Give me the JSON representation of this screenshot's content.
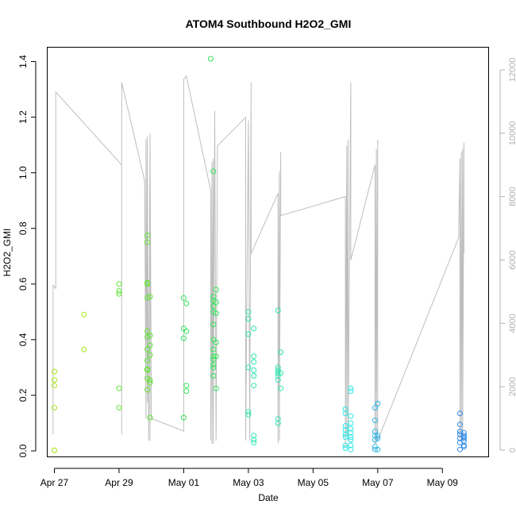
{
  "chart_data": {
    "type": "scatter",
    "title": "ATOM4 Southbound H2O2_GMI",
    "xlabel": "Date",
    "ylabel": "H2O2_GMI",
    "xlim": [
      "2018-04-26T19:00",
      "2018-05-10T10:00"
    ],
    "ylim": [
      -0.02,
      1.45
    ],
    "x_ticks": [
      {
        "label": "Apr 27",
        "x": "2018-04-27"
      },
      {
        "label": "Apr 29",
        "x": "2018-04-29"
      },
      {
        "label": "May 01",
        "x": "2018-05-01"
      },
      {
        "label": "May 03",
        "x": "2018-05-03"
      },
      {
        "label": "May 05",
        "x": "2018-05-05"
      },
      {
        "label": "May 07",
        "x": "2018-05-07"
      },
      {
        "label": "May 09",
        "x": "2018-05-09"
      }
    ],
    "y_ticks": [
      0.0,
      0.2,
      0.4,
      0.6,
      0.8,
      1.0,
      1.2,
      1.4
    ],
    "y_tick_labels": [
      "0.0",
      "0.2",
      "0.4",
      "0.6",
      "0.8",
      "1.0",
      "1.2",
      "1.4"
    ],
    "y2_ticks": [
      0,
      2000,
      4000,
      6000,
      8000,
      10000,
      12000
    ],
    "y2_tick_labels": [
      "0",
      "2000",
      "4000",
      "6000",
      "8000",
      "10000",
      "12000"
    ],
    "y2_lim": [
      -200,
      12700
    ],
    "grid": false,
    "marker": "open-circle",
    "color_scale": [
      "#a8e619",
      "#5ce62d",
      "#2ee657",
      "#2ee6b0",
      "#2ee6e6",
      "#2eb8e6",
      "#2e8ae6"
    ],
    "scatter_points": [
      [
        "2018-04-27T00:00",
        0.285
      ],
      [
        "2018-04-27T00:00",
        0.255
      ],
      [
        "2018-04-27T00:00",
        0.235
      ],
      [
        "2018-04-27T00:00",
        0.155
      ],
      [
        "2018-04-27T00:00",
        0.002
      ],
      [
        "2018-04-27T00:00",
        0.002
      ],
      [
        "2018-04-27T22:00",
        0.49
      ],
      [
        "2018-04-27T22:00",
        0.365
      ],
      [
        "2018-04-29T00:00",
        0.6
      ],
      [
        "2018-04-29T00:00",
        0.575
      ],
      [
        "2018-04-29T00:00",
        0.565
      ],
      [
        "2018-04-29T00:00",
        0.225
      ],
      [
        "2018-04-29T00:00",
        0.155
      ],
      [
        "2018-04-29T21:00",
        0.775
      ],
      [
        "2018-04-29T21:00",
        0.75
      ],
      [
        "2018-04-29T21:00",
        0.605
      ],
      [
        "2018-04-29T21:00",
        0.6
      ],
      [
        "2018-04-29T21:00",
        0.55
      ],
      [
        "2018-04-29T21:00",
        0.43
      ],
      [
        "2018-04-29T21:00",
        0.41
      ],
      [
        "2018-04-29T21:00",
        0.365
      ],
      [
        "2018-04-29T21:00",
        0.325
      ],
      [
        "2018-04-29T21:00",
        0.295
      ],
      [
        "2018-04-29T21:00",
        0.29
      ],
      [
        "2018-04-29T21:00",
        0.26
      ],
      [
        "2018-04-29T21:00",
        0.22
      ],
      [
        "2018-04-29T23:00",
        0.555
      ],
      [
        "2018-04-29T23:00",
        0.415
      ],
      [
        "2018-04-29T23:00",
        0.38
      ],
      [
        "2018-04-29T23:00",
        0.345
      ],
      [
        "2018-04-29T23:00",
        0.255
      ],
      [
        "2018-04-29T23:00",
        0.245
      ],
      [
        "2018-04-29T23:00",
        0.12
      ],
      [
        "2018-05-01T00:00",
        0.55
      ],
      [
        "2018-05-01T00:00",
        0.44
      ],
      [
        "2018-05-01T00:00",
        0.405
      ],
      [
        "2018-05-01T00:00",
        0.12
      ],
      [
        "2018-05-01T02:00",
        0.53
      ],
      [
        "2018-05-01T02:00",
        0.43
      ],
      [
        "2018-05-01T02:00",
        0.235
      ],
      [
        "2018-05-01T02:00",
        0.215
      ],
      [
        "2018-05-01T20:00",
        1.41
      ],
      [
        "2018-05-01T22:00",
        1.005
      ],
      [
        "2018-05-01T22:00",
        0.555
      ],
      [
        "2018-05-01T22:00",
        0.54
      ],
      [
        "2018-05-01T22:00",
        0.52
      ],
      [
        "2018-05-01T22:00",
        0.5
      ],
      [
        "2018-05-01T22:00",
        0.455
      ],
      [
        "2018-05-01T22:00",
        0.4
      ],
      [
        "2018-05-01T22:00",
        0.365
      ],
      [
        "2018-05-01T22:00",
        0.34
      ],
      [
        "2018-05-01T22:00",
        0.33
      ],
      [
        "2018-05-01T22:00",
        0.31
      ],
      [
        "2018-05-01T22:00",
        0.3
      ],
      [
        "2018-05-01T22:00",
        0.27
      ],
      [
        "2018-05-02T00:00",
        0.58
      ],
      [
        "2018-05-02T00:00",
        0.535
      ],
      [
        "2018-05-02T00:00",
        0.495
      ],
      [
        "2018-05-02T00:00",
        0.39
      ],
      [
        "2018-05-02T00:00",
        0.34
      ],
      [
        "2018-05-02T00:00",
        0.225
      ],
      [
        "2018-05-03T00:00",
        0.5
      ],
      [
        "2018-05-03T00:00",
        0.475
      ],
      [
        "2018-05-03T00:00",
        0.42
      ],
      [
        "2018-05-03T00:00",
        0.3
      ],
      [
        "2018-05-03T00:00",
        0.14
      ],
      [
        "2018-05-03T00:00",
        0.13
      ],
      [
        "2018-05-03T04:00",
        0.44
      ],
      [
        "2018-05-03T04:00",
        0.34
      ],
      [
        "2018-05-03T04:00",
        0.32
      ],
      [
        "2018-05-03T04:00",
        0.29
      ],
      [
        "2018-05-03T04:00",
        0.27
      ],
      [
        "2018-05-03T04:00",
        0.235
      ],
      [
        "2018-05-03T04:00",
        0.055
      ],
      [
        "2018-05-03T04:00",
        0.04
      ],
      [
        "2018-05-03T04:00",
        0.03
      ],
      [
        "2018-05-03T22:00",
        0.505
      ],
      [
        "2018-05-03T22:00",
        0.3
      ],
      [
        "2018-05-03T22:00",
        0.29
      ],
      [
        "2018-05-03T22:00",
        0.28
      ],
      [
        "2018-05-03T22:00",
        0.27
      ],
      [
        "2018-05-03T22:00",
        0.255
      ],
      [
        "2018-05-03T22:00",
        0.115
      ],
      [
        "2018-05-03T22:00",
        0.1
      ],
      [
        "2018-05-04T00:00",
        0.355
      ],
      [
        "2018-05-04T00:00",
        0.28
      ],
      [
        "2018-05-04T00:00",
        0.225
      ],
      [
        "2018-05-06T00:00",
        0.15
      ],
      [
        "2018-05-06T00:00",
        0.135
      ],
      [
        "2018-05-06T00:00",
        0.09
      ],
      [
        "2018-05-06T00:00",
        0.075
      ],
      [
        "2018-05-06T00:00",
        0.06
      ],
      [
        "2018-05-06T00:00",
        0.05
      ],
      [
        "2018-05-06T00:00",
        0.02
      ],
      [
        "2018-05-06T00:00",
        0.01
      ],
      [
        "2018-05-06T04:00",
        0.225
      ],
      [
        "2018-05-06T04:00",
        0.215
      ],
      [
        "2018-05-06T04:00",
        0.125
      ],
      [
        "2018-05-06T04:00",
        0.1
      ],
      [
        "2018-05-06T04:00",
        0.08
      ],
      [
        "2018-05-06T04:00",
        0.065
      ],
      [
        "2018-05-06T04:00",
        0.05
      ],
      [
        "2018-05-06T04:00",
        0.04
      ],
      [
        "2018-05-06T04:00",
        0.02
      ],
      [
        "2018-05-06T04:00",
        0.005
      ],
      [
        "2018-05-06T22:00",
        0.155
      ],
      [
        "2018-05-06T22:00",
        0.11
      ],
      [
        "2018-05-06T22:00",
        0.07
      ],
      [
        "2018-05-06T22:00",
        0.055
      ],
      [
        "2018-05-06T22:00",
        0.04
      ],
      [
        "2018-05-06T22:00",
        0.015
      ],
      [
        "2018-05-06T22:00",
        0.005
      ],
      [
        "2018-05-07T00:00",
        0.17
      ],
      [
        "2018-05-07T00:00",
        0.055
      ],
      [
        "2018-05-07T00:00",
        0.045
      ],
      [
        "2018-05-07T00:00",
        0.005
      ],
      [
        "2018-05-09T13:00",
        0.135
      ],
      [
        "2018-05-09T13:00",
        0.095
      ],
      [
        "2018-05-09T13:00",
        0.07
      ],
      [
        "2018-05-09T13:00",
        0.06
      ],
      [
        "2018-05-09T13:00",
        0.045
      ],
      [
        "2018-05-09T13:00",
        0.03
      ],
      [
        "2018-05-09T13:00",
        0.005
      ],
      [
        "2018-05-09T16:00",
        0.065
      ],
      [
        "2018-05-09T16:00",
        0.055
      ],
      [
        "2018-05-09T16:00",
        0.05
      ],
      [
        "2018-05-09T16:00",
        0.045
      ],
      [
        "2018-05-09T16:00",
        0.035
      ],
      [
        "2018-05-09T16:00",
        0.02
      ],
      [
        "2018-05-09T16:00",
        0.015
      ]
    ],
    "altitude_series": {
      "axis": "right",
      "color": "#bebebe",
      "points": [
        [
          "2018-04-26T23:00",
          500
        ],
        [
          "2018-04-26T23:00",
          5200
        ],
        [
          "2018-04-27T01:00",
          5100
        ],
        [
          "2018-04-27T01:00",
          11300
        ],
        [
          "2018-04-29T02:00",
          9000
        ],
        [
          "2018-04-29T02:00",
          500
        ],
        [
          "2018-04-29T02:00",
          11600
        ],
        [
          "2018-04-29T19:00",
          8500
        ],
        [
          "2018-04-29T20:00",
          1000
        ],
        [
          "2018-04-29T20:00",
          9800
        ],
        [
          "2018-04-29T21:00",
          1500
        ],
        [
          "2018-04-29T21:00",
          9900
        ],
        [
          "2018-04-29T22:00",
          300
        ],
        [
          "2018-04-29T23:00",
          9700
        ],
        [
          "2018-04-29T23:00",
          300
        ],
        [
          "2018-04-29T23:00",
          10000
        ],
        [
          "2018-04-30T00:00",
          1000
        ],
        [
          "2018-05-01T00:00",
          600
        ],
        [
          "2018-05-01T00:00",
          11700
        ],
        [
          "2018-05-01T02:00",
          11800
        ],
        [
          "2018-05-01T20:00",
          8200
        ],
        [
          "2018-05-01T20:00",
          300
        ],
        [
          "2018-05-01T21:00",
          9100
        ],
        [
          "2018-05-01T21:00",
          200
        ],
        [
          "2018-05-01T22:00",
          9200
        ],
        [
          "2018-05-01T22:00",
          200
        ],
        [
          "2018-05-01T23:00",
          10700
        ],
        [
          "2018-05-02T00:00",
          300
        ],
        [
          "2018-05-02T01:00",
          9600
        ],
        [
          "2018-05-02T22:00",
          10500
        ],
        [
          "2018-05-02T22:00",
          300
        ],
        [
          "2018-05-03T00:00",
          10400
        ],
        [
          "2018-05-03T01:00",
          300
        ],
        [
          "2018-05-03T02:00",
          11600
        ],
        [
          "2018-05-03T02:00",
          6200
        ],
        [
          "2018-05-03T22:00",
          8100
        ],
        [
          "2018-05-03T22:00",
          200
        ],
        [
          "2018-05-03T23:00",
          8800
        ],
        [
          "2018-05-03T23:00",
          300
        ],
        [
          "2018-05-04T00:00",
          9400
        ],
        [
          "2018-05-04T00:00",
          7400
        ],
        [
          "2018-05-06T00:00",
          8000
        ],
        [
          "2018-05-06T00:00",
          100
        ],
        [
          "2018-05-06T01:00",
          9600
        ],
        [
          "2018-05-06T01:00",
          500
        ],
        [
          "2018-05-06T02:00",
          9800
        ],
        [
          "2018-05-06T02:00",
          300
        ],
        [
          "2018-05-06T04:00",
          11600
        ],
        [
          "2018-05-06T04:00",
          6000
        ],
        [
          "2018-05-06T22:00",
          9000
        ],
        [
          "2018-05-06T22:00",
          200
        ],
        [
          "2018-05-06T23:00",
          9500
        ],
        [
          "2018-05-06T23:00",
          200
        ],
        [
          "2018-05-07T00:00",
          9800
        ],
        [
          "2018-05-07T00:00",
          300
        ],
        [
          "2018-05-09T12:00",
          6700
        ],
        [
          "2018-05-09T13:00",
          9200
        ],
        [
          "2018-05-09T13:00",
          300
        ],
        [
          "2018-05-09T14:00",
          9400
        ],
        [
          "2018-05-09T14:00",
          300
        ],
        [
          "2018-05-09T15:00",
          9500
        ],
        [
          "2018-05-09T15:00",
          300
        ],
        [
          "2018-05-09T16:00",
          9700
        ],
        [
          "2018-05-09T16:00",
          6200
        ]
      ]
    }
  }
}
